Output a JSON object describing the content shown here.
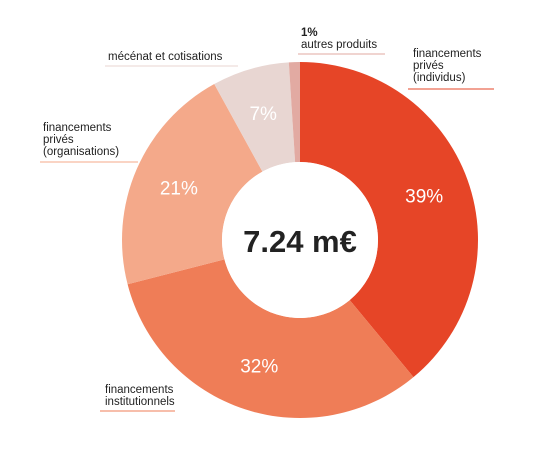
{
  "chart_data": {
    "type": "pie",
    "center_label": "7.24 m€",
    "slices": [
      {
        "category": [
          "financements",
          "privés",
          "(individus)"
        ],
        "value": 39,
        "label": "39%",
        "color": "#e64527"
      },
      {
        "category": [
          "financements",
          "institutionnels"
        ],
        "value": 32,
        "label": "32%",
        "color": "#ef7d57"
      },
      {
        "category": [
          "financements",
          "privés",
          "(organisations)"
        ],
        "value": 21,
        "label": "21%",
        "color": "#f4a98a"
      },
      {
        "category": [
          "mécénat et cotisations"
        ],
        "value": 7,
        "label": "7%",
        "color": "#e8d6d2"
      },
      {
        "category": [
          "autres produits"
        ],
        "value": 1,
        "label": "1%",
        "color": "#e2aaa2"
      }
    ]
  }
}
